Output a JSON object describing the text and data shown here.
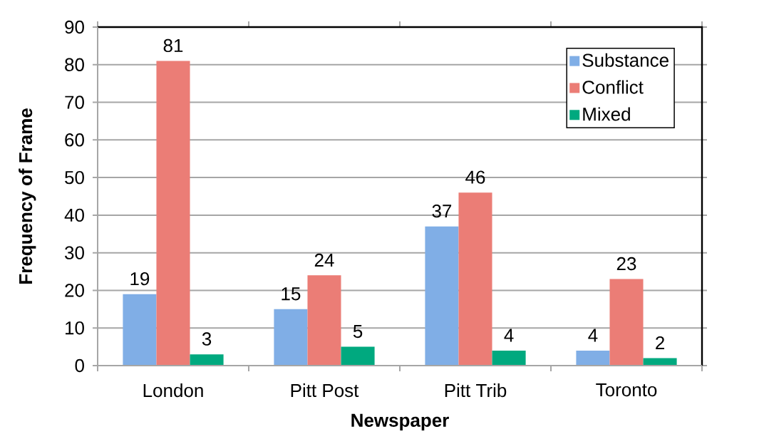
{
  "chart_data": {
    "type": "bar",
    "xlabel": "Newspaper",
    "ylabel": "Frequency of Frame",
    "categories": [
      "London",
      "Pitt Post",
      "Pitt Trib",
      "Toronto"
    ],
    "series": [
      {
        "name": "Substance",
        "color": "#80aee6",
        "values": [
          19,
          15,
          37,
          4
        ]
      },
      {
        "name": "Conflict",
        "color": "#eb7d76",
        "values": [
          81,
          24,
          46,
          23
        ]
      },
      {
        "name": "Mixed",
        "color": "#00a97f",
        "values": [
          3,
          5,
          4,
          2
        ]
      }
    ],
    "ylim": [
      0,
      90
    ],
    "yticks": [
      0,
      10,
      20,
      30,
      40,
      50,
      60,
      70,
      80,
      90
    ],
    "grid": "y",
    "legend": "top right",
    "data_labels": true
  }
}
